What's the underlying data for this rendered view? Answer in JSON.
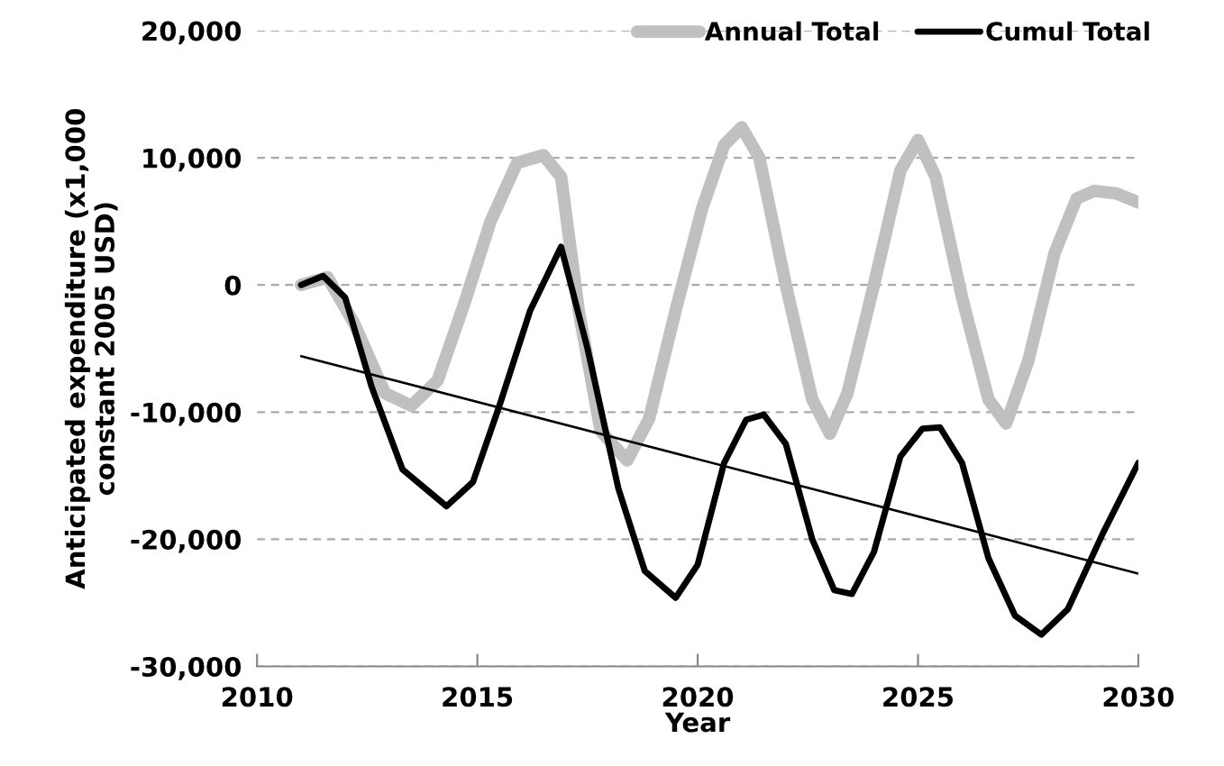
{
  "chart_data": {
    "type": "line",
    "xlabel": "Year",
    "ylabel": "Anticipated expenditure (x1,000 constant 2005 USD)",
    "xlim": [
      2010,
      2030
    ],
    "xticks": [
      2010,
      2015,
      2020,
      2025,
      2030
    ],
    "ylim": [
      -30000,
      20000
    ],
    "yticks": [
      {
        "value": -30000,
        "label": "-30,000"
      },
      {
        "value": -20000,
        "label": "-20,000"
      },
      {
        "value": -10000,
        "label": "-10,000"
      },
      {
        "value": 0,
        "label": "0"
      },
      {
        "value": 10000,
        "label": "10,000"
      },
      {
        "value": 20000,
        "label": "20,000"
      }
    ],
    "grid": "y",
    "legend": "top right",
    "marker": "none",
    "line_style": "solid",
    "series": [
      {
        "name": "Annual Total",
        "color": "#c0c0c0",
        "x": [
          2011,
          2011.6,
          2012.2,
          2012.9,
          2013.5,
          2014.1,
          2014.7,
          2015.3,
          2015.9,
          2016.5,
          2016.9,
          2017.3,
          2017.8,
          2018.4,
          2018.9,
          2019.5,
          2020.1,
          2020.6,
          2021,
          2021.4,
          2022,
          2022.6,
          2023,
          2023.4,
          2024,
          2024.6,
          2025,
          2025.4,
          2026,
          2026.6,
          2027,
          2027.5,
          2028.1,
          2028.6,
          2029,
          2029.5,
          2030
        ],
        "values": [
          0,
          600,
          -3000,
          -8500,
          -9500,
          -7500,
          -1500,
          5000,
          9600,
          10200,
          8500,
          -2000,
          -11500,
          -13800,
          -10500,
          -2000,
          6000,
          11000,
          12400,
          10000,
          0,
          -9000,
          -11700,
          -8500,
          0,
          9000,
          11400,
          8500,
          -1000,
          -9000,
          -10900,
          -6000,
          2500,
          6800,
          7400,
          7200,
          6500
        ]
      },
      {
        "name": "Cumul Total",
        "color": "#000000",
        "x": [
          2011,
          2011.5,
          2012,
          2012.6,
          2013.3,
          2014.3,
          2014.9,
          2015.5,
          2016.2,
          2016.9,
          2017.5,
          2018.2,
          2018.8,
          2019.5,
          2020,
          2020.6,
          2021.1,
          2021.5,
          2022,
          2022.6,
          2023.1,
          2023.5,
          2024,
          2024.6,
          2025.1,
          2025.5,
          2026,
          2026.6,
          2027.2,
          2027.8,
          2028.4,
          2029.2,
          2030
        ],
        "values": [
          0,
          700,
          -1000,
          -8000,
          -14500,
          -17400,
          -15500,
          -9500,
          -2000,
          3000,
          -5000,
          -16000,
          -22500,
          -24600,
          -22000,
          -14000,
          -10600,
          -10200,
          -12500,
          -20000,
          -24000,
          -24300,
          -21000,
          -13500,
          -11300,
          -11200,
          -14000,
          -21500,
          -26000,
          -27500,
          -25500,
          -19500,
          -14000
        ]
      },
      {
        "color": "#000000",
        "x": [
          2011,
          2030
        ],
        "values": [
          -5600,
          -22700
        ]
      }
    ]
  }
}
